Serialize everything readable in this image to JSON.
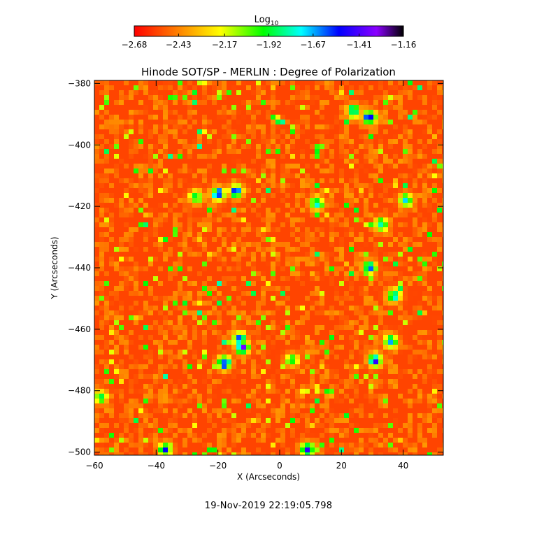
{
  "chart_data": {
    "type": "heatmap",
    "title": "Hinode SOT/SP - MERLIN : Degree of Polarization",
    "xlabel": "X (Arcseconds)",
    "ylabel": "Y (Arcseconds)",
    "xlim": [
      -60,
      53
    ],
    "ylim": [
      -501,
      -379
    ],
    "x_ticks": [
      -60,
      -40,
      -20,
      0,
      20,
      40
    ],
    "x_tick_labels": [
      "−60",
      "−40",
      "−20",
      "0",
      "20",
      "40"
    ],
    "y_ticks": [
      -380,
      -400,
      -420,
      -440,
      -460,
      -480,
      -500
    ],
    "y_tick_labels": [
      "−380",
      "−400",
      "−420",
      "−440",
      "−460",
      "−480",
      "−500"
    ],
    "colorbar": {
      "label_main": "Log",
      "label_sub": "10",
      "scale": "log10",
      "range": [
        -2.68,
        -1.16
      ],
      "ticks": [
        -2.68,
        -2.43,
        -2.17,
        -1.92,
        -1.67,
        -1.41,
        -1.16
      ],
      "tick_labels": [
        "−2.68",
        "−2.43",
        "−2.17",
        "−1.92",
        "−1.67",
        "−1.41",
        "−1.16"
      ],
      "colormap": [
        "#ff0000",
        "#ff7f00",
        "#ffff00",
        "#00ff00",
        "#00ffff",
        "#0000ff",
        "#8b00ff",
        "#000000"
      ]
    },
    "background_value": -2.55,
    "hotspots": [
      {
        "x": -20,
        "y": -416,
        "value": -1.35
      },
      {
        "x": -14,
        "y": -415,
        "value": -1.4
      },
      {
        "x": 12,
        "y": -419,
        "value": -1.55
      },
      {
        "x": 29,
        "y": -391,
        "value": -1.3
      },
      {
        "x": 24,
        "y": -389,
        "value": -1.55
      },
      {
        "x": 33,
        "y": -426,
        "value": -1.6
      },
      {
        "x": 29,
        "y": -440,
        "value": -1.6
      },
      {
        "x": 37,
        "y": -449,
        "value": -1.55
      },
      {
        "x": -12,
        "y": -466,
        "value": -1.4
      },
      {
        "x": -18,
        "y": -471,
        "value": -1.35
      },
      {
        "x": -13,
        "y": -463,
        "value": -1.55
      },
      {
        "x": 31,
        "y": -470,
        "value": -1.3
      },
      {
        "x": 36,
        "y": -464,
        "value": -1.5
      },
      {
        "x": 9,
        "y": -499,
        "value": -1.45
      },
      {
        "x": -37,
        "y": -499,
        "value": -1.55
      },
      {
        "x": 41,
        "y": -418,
        "value": -1.6
      },
      {
        "x": -27,
        "y": -417,
        "value": -1.7
      },
      {
        "x": 4,
        "y": -470,
        "value": -1.8
      },
      {
        "x": -58,
        "y": -482,
        "value": -1.75
      }
    ],
    "timestamp": "19-Nov-2019 22:19:05.798"
  }
}
